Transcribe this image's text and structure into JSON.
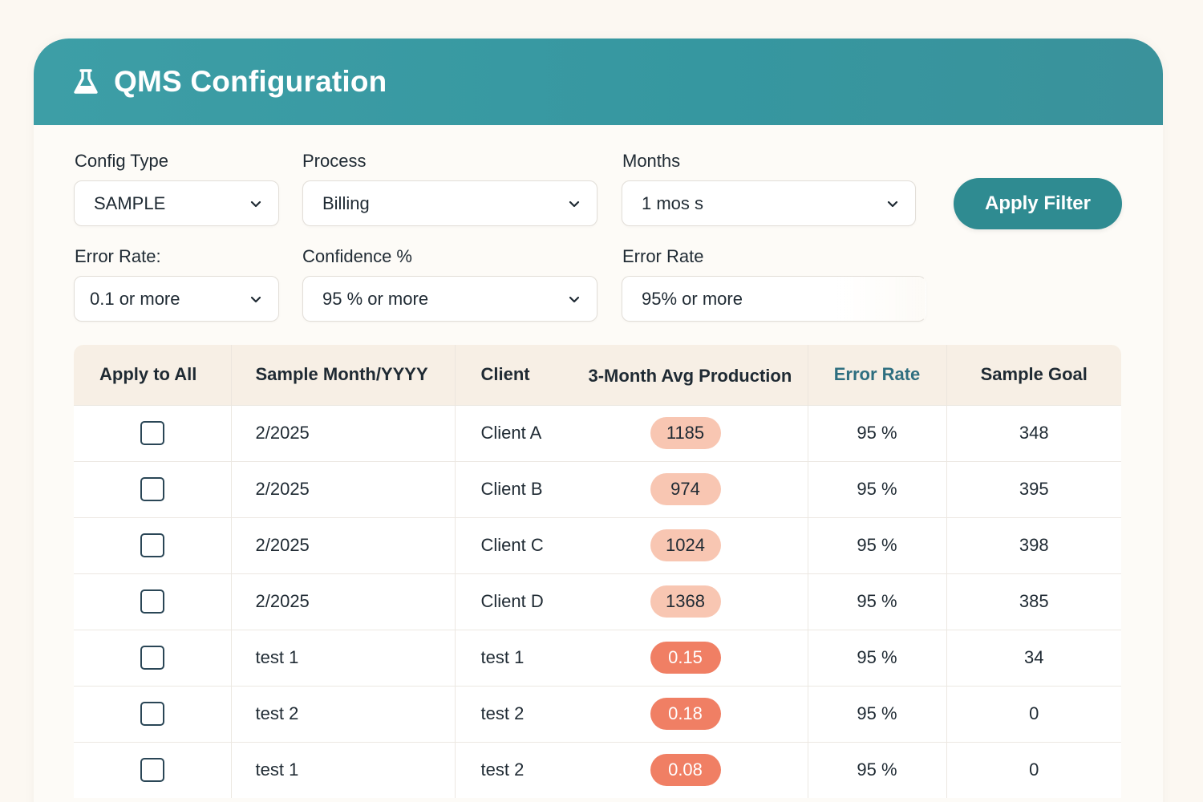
{
  "header": {
    "title": "QMS Configuration",
    "icon": "flask-icon"
  },
  "filters": {
    "config_type": {
      "label": "Config Type",
      "value": "SAMPLE"
    },
    "process": {
      "label": "Process",
      "value": "Billing"
    },
    "months": {
      "label": "Months",
      "value": "1 mos s"
    },
    "error_rate_select": {
      "label": "Error Rate:",
      "value": "0.1 or more"
    },
    "confidence": {
      "label": "Confidence %",
      "value": "95 % or more"
    },
    "error_rate_field": {
      "label": "Error Rate",
      "value": "95% or more"
    },
    "apply_label": "Apply Filter"
  },
  "table": {
    "headers": {
      "apply_all": "Apply to All",
      "month": "Sample Month/YYYY",
      "client": "Client",
      "avg": "3-Month Avg Production",
      "error_rate": "Error Rate",
      "goal": "Sample Goal"
    },
    "rows": [
      {
        "month": "2/2025",
        "client": "Client A",
        "avg": "1185",
        "error_rate": "95 %",
        "goal": "348",
        "pill": "light"
      },
      {
        "month": "2/2025",
        "client": "Client B",
        "avg": "974",
        "error_rate": "95 %",
        "goal": "395",
        "pill": "light"
      },
      {
        "month": "2/2025",
        "client": "Client C",
        "avg": "1024",
        "error_rate": "95 %",
        "goal": "398",
        "pill": "light"
      },
      {
        "month": "2/2025",
        "client": "Client D",
        "avg": "1368",
        "error_rate": "95 %",
        "goal": "385",
        "pill": "light"
      },
      {
        "month": "test 1",
        "client": "test 1",
        "avg": "0.15",
        "error_rate": "95 %",
        "goal": "34",
        "pill": "strong"
      },
      {
        "month": "test 2",
        "client": "test 2",
        "avg": "0.18",
        "error_rate": "95 %",
        "goal": "0",
        "pill": "strong"
      },
      {
        "month": "test 1",
        "client": "test 2",
        "avg": "0.08",
        "error_rate": "95 %",
        "goal": "0",
        "pill": "strong"
      }
    ]
  },
  "colors": {
    "header_teal": "#3697a0",
    "button_teal": "#2f8b91",
    "pill_light": "#f8c6b2",
    "pill_strong": "#f07f64"
  }
}
